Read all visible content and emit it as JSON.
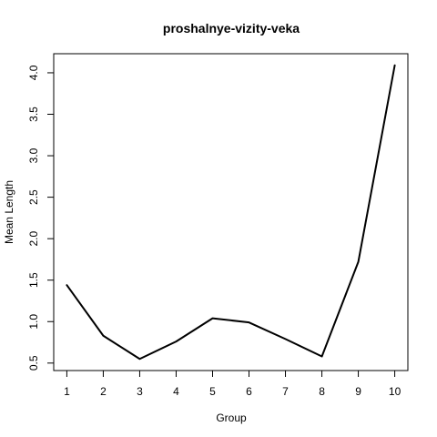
{
  "chart_data": {
    "type": "line",
    "title": "proshalnye-vizity-veka",
    "xlabel": "Group",
    "ylabel": "Mean Length",
    "x": [
      1,
      2,
      3,
      4,
      5,
      6,
      7,
      8,
      9,
      10
    ],
    "series": [
      {
        "values": [
          1.44,
          0.83,
          0.55,
          0.76,
          1.04,
          0.99,
          0.79,
          0.58,
          1.72,
          4.09
        ]
      }
    ],
    "x_ticks": [
      "1",
      "2",
      "3",
      "4",
      "5",
      "6",
      "7",
      "8",
      "9",
      "10"
    ],
    "y_ticks": [
      "0.5",
      "1.0",
      "1.5",
      "2.0",
      "2.5",
      "3.0",
      "3.5",
      "4.0"
    ],
    "xlim": [
      0.64,
      10.36
    ],
    "ylim": [
      0.41,
      4.23
    ],
    "grid": false,
    "line_color": "#000000"
  }
}
